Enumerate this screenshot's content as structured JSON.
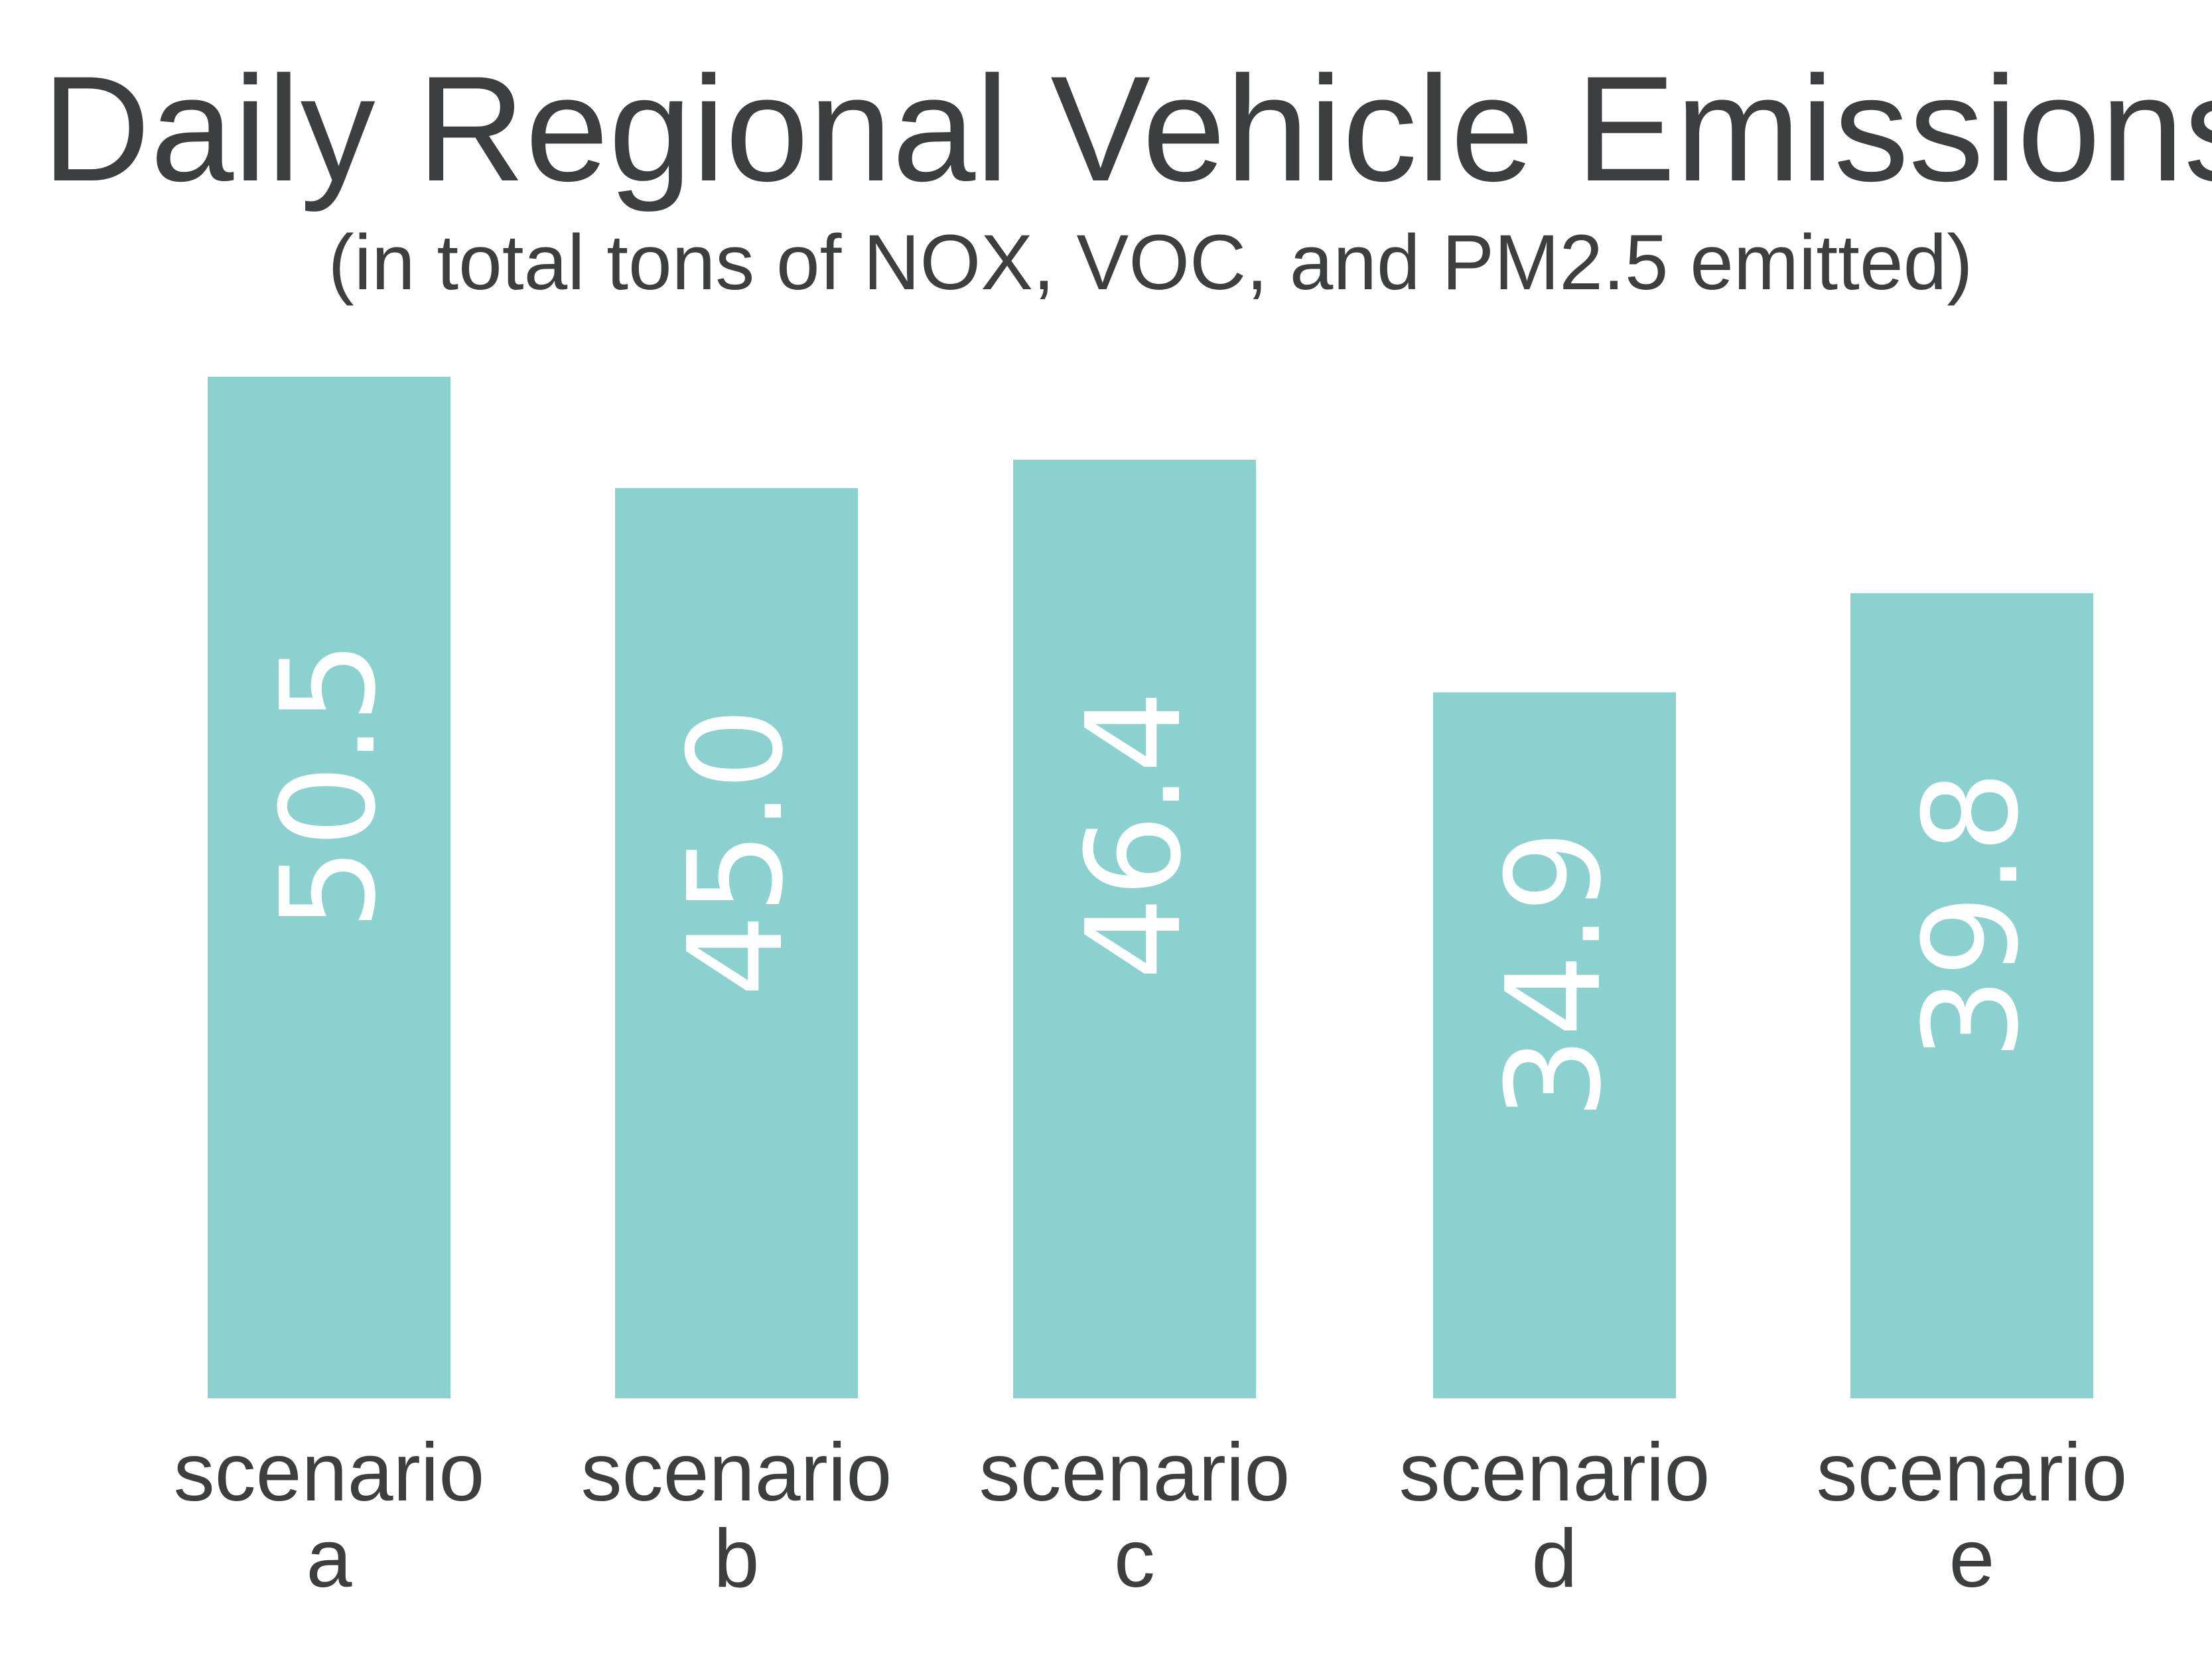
{
  "chart_data": {
    "type": "bar",
    "title": "Daily Regional Vehicle Emissions",
    "subtitle": "(in total tons of NOX, VOC, and PM2.5 emitted)",
    "categories": [
      [
        "scenario",
        "a"
      ],
      [
        "scenario",
        "b"
      ],
      [
        "scenario",
        "c"
      ],
      [
        "scenario",
        "d"
      ],
      [
        "scenario",
        "e"
      ]
    ],
    "values": [
      50.5,
      45.0,
      46.4,
      34.9,
      39.8
    ],
    "value_labels": [
      "50.5",
      "45.0",
      "46.4",
      "34.9",
      "39.8"
    ],
    "xlabel": "",
    "ylabel": "",
    "ylim": [
      0,
      50.5
    ],
    "grid": false,
    "legend": "none",
    "colors": {
      "bar": "#8bd1d0",
      "bar_label": "#ffffff",
      "text": "#3d3e40"
    }
  }
}
